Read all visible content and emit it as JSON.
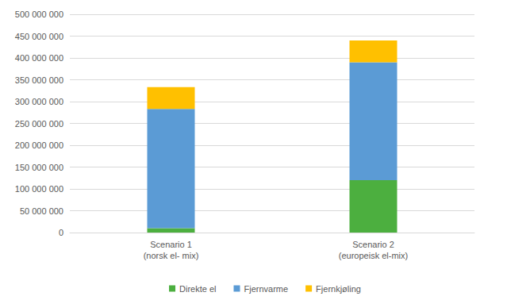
{
  "chart_data": {
    "type": "bar",
    "stacked": true,
    "grid": true,
    "legend": "bottom",
    "categories": [
      "Scenario 1\n(norsk el- mix)",
      "Scenario 2\n(europeisk el-mix)"
    ],
    "series": [
      {
        "name": "Direkte el",
        "color": "#4caf3f",
        "values": [
          10000000,
          120000000
        ]
      },
      {
        "name": "Fjernvarme",
        "color": "#5b9bd5",
        "values": [
          273000000,
          270000000
        ]
      },
      {
        "name": "Fjernkjøling",
        "color": "#ffc000",
        "values": [
          50000000,
          50000000
        ]
      }
    ],
    "ylim": [
      0,
      500000000
    ],
    "yticks": [
      0,
      {
        "value": 50000000,
        "label": "50 000 000"
      },
      {
        "value": 100000000,
        "label": "100 000 000"
      },
      {
        "value": 150000000,
        "label": "150 000 000"
      },
      {
        "value": 200000000,
        "label": "200 000 000"
      },
      {
        "value": 250000000,
        "label": "250 000 000"
      },
      {
        "value": 300000000,
        "label": "300 000 000"
      },
      {
        "value": 350000000,
        "label": "350 000 000"
      },
      {
        "value": 400000000,
        "label": "400 000 000"
      },
      {
        "value": 450000000,
        "label": "450 000 000"
      },
      {
        "value": 500000000,
        "label": "500 000 000"
      }
    ]
  }
}
